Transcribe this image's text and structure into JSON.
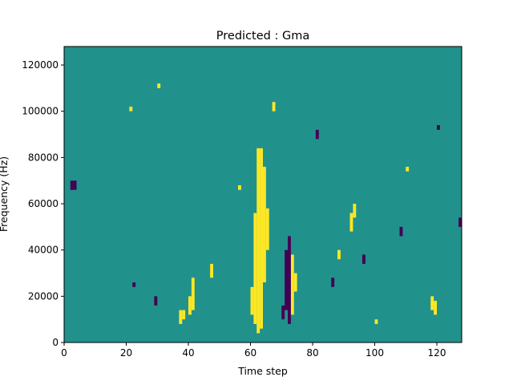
{
  "chart_data": {
    "type": "heatmap",
    "title": "Predicted : Gma",
    "xlabel": "Time step",
    "ylabel": "Frequency (Hz)",
    "xlim": [
      0,
      128
    ],
    "ylim": [
      0,
      128000
    ],
    "x_ticks": [
      0,
      20,
      40,
      60,
      80,
      100,
      120
    ],
    "y_ticks": [
      0,
      20000,
      40000,
      60000,
      80000,
      100000,
      120000
    ],
    "grid": false,
    "legend": "none",
    "n_time_steps": 128,
    "n_freq_bins": 64,
    "value_levels": [
      -1,
      0,
      1
    ],
    "colormap": {
      "-1": "#440154",
      "0": "#21918c",
      "1": "#fde725"
    },
    "background_value": 0,
    "cells": [
      {
        "value": 1,
        "x": 62,
        "y0": 4000,
        "y1": 84000
      },
      {
        "value": 1,
        "x": 63,
        "y0": 6000,
        "y1": 84000
      },
      {
        "value": 1,
        "x": 61,
        "y0": 8000,
        "y1": 56000
      },
      {
        "value": 1,
        "x": 64,
        "y0": 26000,
        "y1": 76000
      },
      {
        "value": 1,
        "x": 65,
        "y0": 40000,
        "y1": 58000
      },
      {
        "value": 1,
        "x": 60,
        "y0": 12000,
        "y1": 24000
      },
      {
        "value": 1,
        "x": 73,
        "y0": 12000,
        "y1": 38000
      },
      {
        "value": 1,
        "x": 74,
        "y0": 22000,
        "y1": 30000
      },
      {
        "value": 1,
        "x": 41,
        "y0": 14000,
        "y1": 28000
      },
      {
        "value": 1,
        "x": 40,
        "y0": 12000,
        "y1": 20000
      },
      {
        "value": 1,
        "x": 92,
        "y0": 48000,
        "y1": 56000
      },
      {
        "value": 1,
        "x": 93,
        "y0": 54000,
        "y1": 60000
      },
      {
        "value": 1,
        "x": 118,
        "y0": 14000,
        "y1": 20000
      },
      {
        "value": 1,
        "x": 119,
        "y0": 12000,
        "y1": 18000
      },
      {
        "value": 1,
        "x": 37,
        "y0": 8000,
        "y1": 14000
      },
      {
        "value": 1,
        "x": 38,
        "y0": 10000,
        "y1": 14000
      },
      {
        "value": 1,
        "x": 67,
        "y0": 100000,
        "y1": 104000
      },
      {
        "value": 1,
        "x": 47,
        "y0": 28000,
        "y1": 34000
      },
      {
        "value": 1,
        "x": 21,
        "y0": 100000,
        "y1": 102000
      },
      {
        "value": 1,
        "x": 30,
        "y0": 110000,
        "y1": 112000
      },
      {
        "value": 1,
        "x": 110,
        "y0": 74000,
        "y1": 76000
      },
      {
        "value": 1,
        "x": 56,
        "y0": 66000,
        "y1": 68000
      },
      {
        "value": 1,
        "x": 88,
        "y0": 36000,
        "y1": 40000
      },
      {
        "value": 1,
        "x": 100,
        "y0": 8000,
        "y1": 10000
      },
      {
        "value": -1,
        "x": 72,
        "y0": 8000,
        "y1": 46000
      },
      {
        "value": -1,
        "x": 71,
        "y0": 14000,
        "y1": 40000
      },
      {
        "value": -1,
        "x": 70,
        "y0": 10000,
        "y1": 16000
      },
      {
        "value": -1,
        "x": 2,
        "y0": 66000,
        "y1": 70000
      },
      {
        "value": -1,
        "x": 3,
        "y0": 66000,
        "y1": 70000
      },
      {
        "value": -1,
        "x": 127,
        "y0": 50000,
        "y1": 54000
      },
      {
        "value": -1,
        "x": 22,
        "y0": 24000,
        "y1": 26000
      },
      {
        "value": -1,
        "x": 96,
        "y0": 34000,
        "y1": 38000
      },
      {
        "value": -1,
        "x": 108,
        "y0": 46000,
        "y1": 50000
      },
      {
        "value": -1,
        "x": 120,
        "y0": 92000,
        "y1": 94000
      },
      {
        "value": -1,
        "x": 81,
        "y0": 88000,
        "y1": 92000
      },
      {
        "value": -1,
        "x": 29,
        "y0": 16000,
        "y1": 20000
      },
      {
        "value": -1,
        "x": 86,
        "y0": 24000,
        "y1": 28000
      }
    ]
  }
}
